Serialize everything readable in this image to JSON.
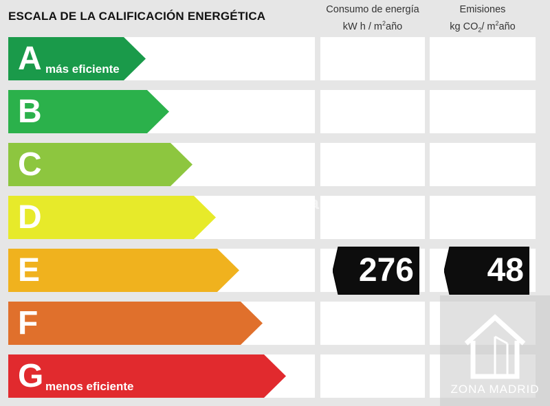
{
  "header": {
    "title": "ESCALA DE LA CALIFICACIÓN ENERGÉTICA",
    "consumo": {
      "line1": "Consumo de energía",
      "unit_a": "kW h / m",
      "unit_sup": "2",
      "unit_b": "año"
    },
    "emisiones": {
      "line1": "Emisiones",
      "unit_a": "kg CO",
      "unit_sub": "2",
      "unit_mid": "/ m",
      "unit_sup": "2",
      "unit_b": "año"
    }
  },
  "bands": [
    {
      "letter": "A",
      "sub": "más eficiente",
      "color": "#1a9a4a"
    },
    {
      "letter": "B",
      "sub": "",
      "color": "#2bb14b"
    },
    {
      "letter": "C",
      "sub": "",
      "color": "#8dc63f"
    },
    {
      "letter": "D",
      "sub": "",
      "color": "#e7ea2a"
    },
    {
      "letter": "E",
      "sub": "",
      "color": "#f0b21e"
    },
    {
      "letter": "F",
      "sub": "",
      "color": "#e0702c"
    },
    {
      "letter": "G",
      "sub": "menos eficiente",
      "color": "#e12a2e"
    }
  ],
  "rating": {
    "band": "E",
    "consumo_value": "276",
    "emisiones_value": "48"
  },
  "watermark": "habitaclia",
  "logo": {
    "text": "ZONA MADRID",
    "icon": "house-icon"
  }
}
